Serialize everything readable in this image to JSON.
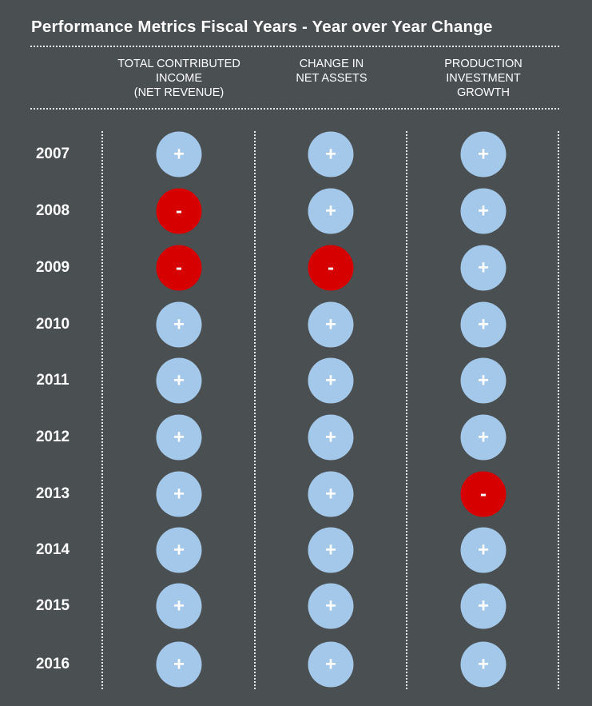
{
  "chart_data": {
    "type": "table",
    "title": "Performance Metrics Fiscal Years - Year over Year Change",
    "columns": [
      "TOTAL CONTRIBUTED\nINCOME\n(NET REVENUE)",
      "CHANGE IN\nNET ASSETS",
      "PRODUCTION\nINVESTMENT\nGROWTH"
    ],
    "rows": [
      {
        "year": "2007",
        "values": [
          "+",
          "+",
          "+"
        ]
      },
      {
        "year": "2008",
        "values": [
          "-",
          "+",
          "+"
        ]
      },
      {
        "year": "2009",
        "values": [
          "-",
          "-",
          "+"
        ]
      },
      {
        "year": "2010",
        "values": [
          "+",
          "+",
          "+"
        ]
      },
      {
        "year": "2011",
        "values": [
          "+",
          "+",
          "+"
        ]
      },
      {
        "year": "2012",
        "values": [
          "+",
          "+",
          "+"
        ]
      },
      {
        "year": "2013",
        "values": [
          "+",
          "+",
          "-"
        ]
      },
      {
        "year": "2014",
        "values": [
          "+",
          "+",
          "+"
        ]
      },
      {
        "year": "2015",
        "values": [
          "+",
          "+",
          "+"
        ]
      },
      {
        "year": "2016",
        "values": [
          "+",
          "+",
          "+"
        ]
      }
    ],
    "colors": {
      "background": "#4a4f52",
      "positive": "#a4c8e9",
      "negative": "#d70000"
    }
  }
}
